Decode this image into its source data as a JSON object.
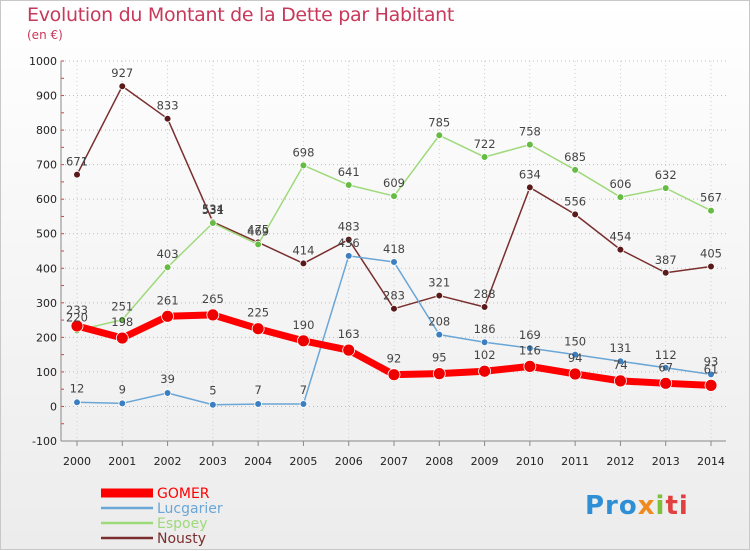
{
  "chart_data": {
    "type": "line",
    "title": "Evolution du Montant de la Dette par Habitant",
    "subtitle": "(en €)",
    "x": [
      "2000",
      "2001",
      "2002",
      "2003",
      "2004",
      "2005",
      "2006",
      "2007",
      "2008",
      "2009",
      "2010",
      "2011",
      "2012",
      "2013",
      "2014"
    ],
    "ylim": [
      -100,
      1000
    ],
    "yticks": [
      -100,
      0,
      100,
      200,
      300,
      400,
      500,
      600,
      700,
      800,
      900,
      1000
    ],
    "grid": true,
    "legend_position": "bottom-left",
    "series": [
      {
        "name": "Nousty",
        "color": "#7a2e2e",
        "marker": "#5a1a1a",
        "values": [
          671,
          927,
          833,
          534,
          475,
          414,
          483,
          283,
          321,
          288,
          634,
          556,
          454,
          387,
          405
        ]
      },
      {
        "name": "Espoey",
        "color": "#9ed97a",
        "marker": "#66bb44",
        "values": [
          220,
          251,
          403,
          531,
          469,
          698,
          641,
          609,
          785,
          722,
          758,
          685,
          606,
          632,
          567
        ]
      },
      {
        "name": "Lucgarier",
        "color": "#6aa6d6",
        "marker": "#3b7fc0",
        "values": [
          12,
          9,
          39,
          5,
          7,
          7,
          436,
          418,
          208,
          186,
          169,
          150,
          131,
          112,
          93
        ]
      },
      {
        "name": "GOMER",
        "color": "#ff0000",
        "marker": "#ee0000",
        "values": [
          233,
          198,
          261,
          265,
          225,
          190,
          163,
          92,
          95,
          102,
          116,
          94,
          74,
          67,
          61
        ]
      }
    ]
  },
  "logo": {
    "p1": "Pro",
    "p2": "x",
    "p3": "i",
    "p4": "ti"
  }
}
